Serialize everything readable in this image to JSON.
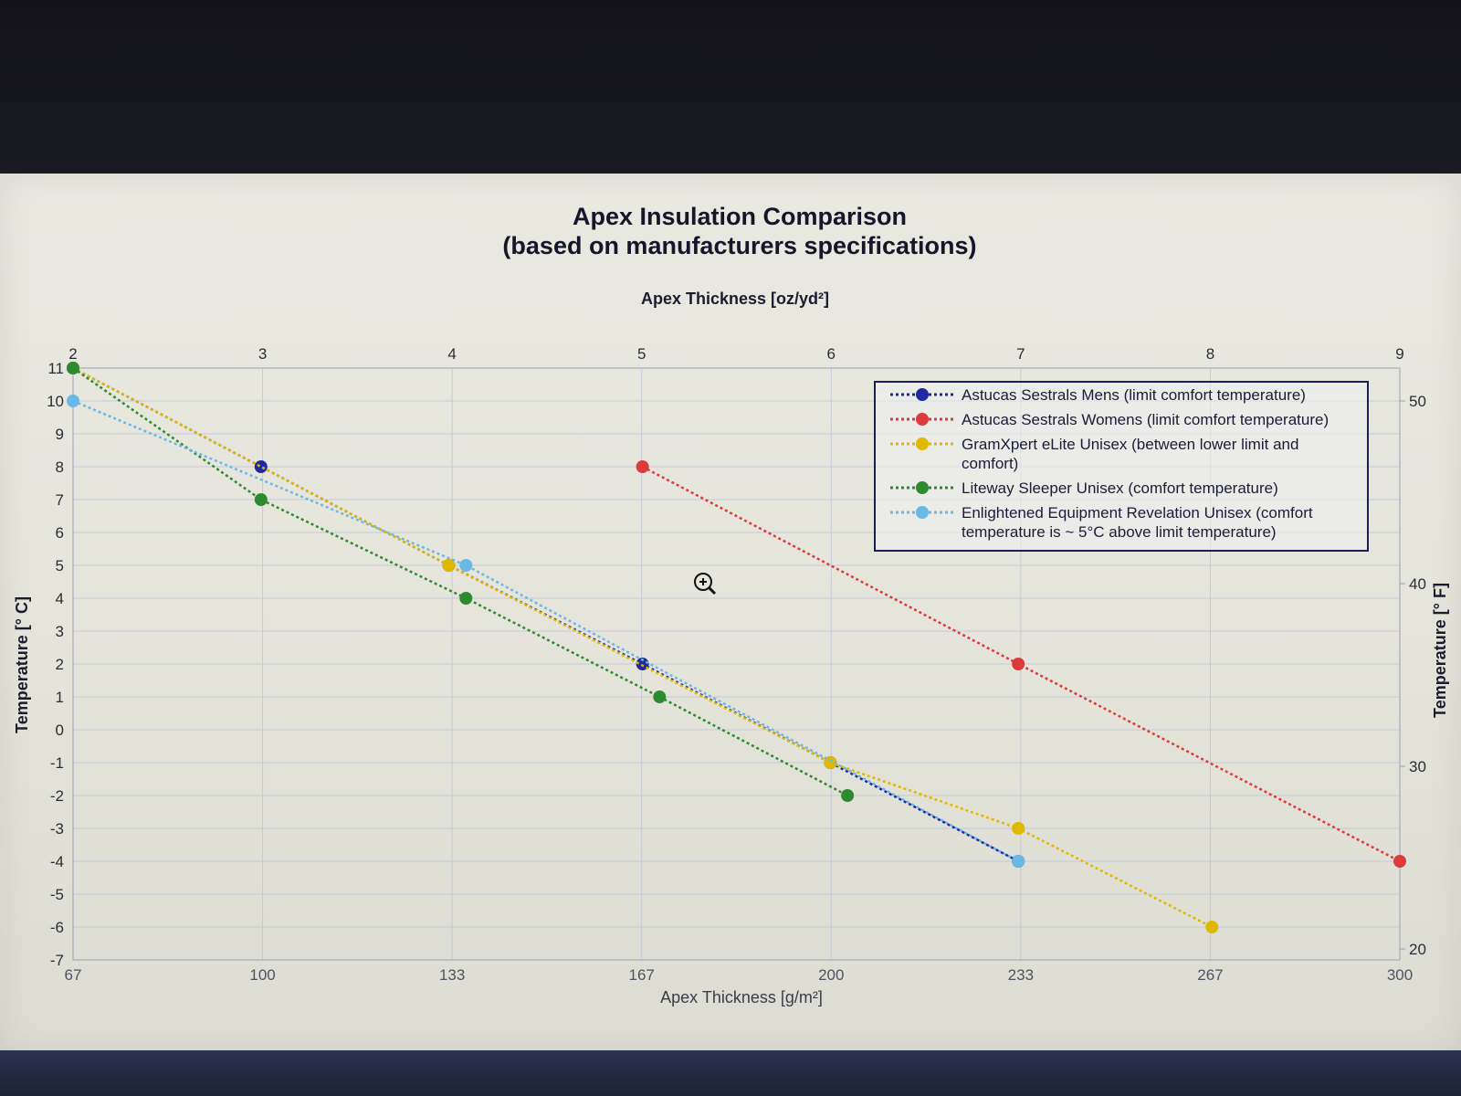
{
  "chart_data": {
    "type": "line",
    "title": "Apex Insulation Comparison",
    "subtitle": "(based on manufacturers specifications)",
    "xlabel": "Apex Thickness [g/m²]",
    "x2label": "Apex Thickness [oz/yd²]",
    "ylabel": "Temperature [° C]",
    "y2label": "Temperature [° F]",
    "xlim": [
      67,
      300
    ],
    "ylim": [
      -7,
      11
    ],
    "x_ticks": [
      "67",
      "100",
      "133",
      "167",
      "200",
      "233",
      "267",
      "300"
    ],
    "x2_ticks": [
      "2",
      "3",
      "4",
      "5",
      "6",
      "7",
      "8",
      "9"
    ],
    "y_ticks": [
      "11",
      "10",
      "9",
      "8",
      "7",
      "6",
      "5",
      "4",
      "3",
      "2",
      "1",
      "0",
      "-1",
      "-2",
      "-3",
      "-4",
      "-5",
      "-6",
      "-7"
    ],
    "y2_ticks": [
      "50",
      "40",
      "30",
      "20"
    ],
    "grid": true,
    "legend_position": "top-right",
    "series": [
      {
        "name": "Astucas Sestrals Mens (limit comfort temperature)",
        "color": "#1f2aa0",
        "x": [
          67,
          100,
          133,
          167,
          200,
          233
        ],
        "y": [
          11,
          8,
          5,
          2,
          -1,
          -4
        ]
      },
      {
        "name": "Astucas Sestrals Womens (limit comfort temperature)",
        "color": "#dd3a3a",
        "x": [
          167,
          233,
          300
        ],
        "y": [
          8,
          2,
          -4
        ]
      },
      {
        "name": "GramXpert eLite Unisex (between lower limit and comfort)",
        "color": "#e0b800",
        "x": [
          67,
          133,
          200,
          233,
          267
        ],
        "y": [
          11,
          5,
          -1,
          -3,
          -6
        ]
      },
      {
        "name": "Liteway Sleeper Unisex (comfort temperature)",
        "color": "#2e8a2e",
        "x": [
          67,
          100,
          136,
          170,
          203
        ],
        "y": [
          11,
          7,
          4,
          1,
          -2
        ]
      },
      {
        "name": "Enlightened Equipment Revelation Unisex (comfort temperature is ~ 5°C above limit temperature)",
        "color": "#6ab8e6",
        "x": [
          67,
          136,
          233
        ],
        "y": [
          10,
          5,
          -4
        ]
      }
    ]
  }
}
